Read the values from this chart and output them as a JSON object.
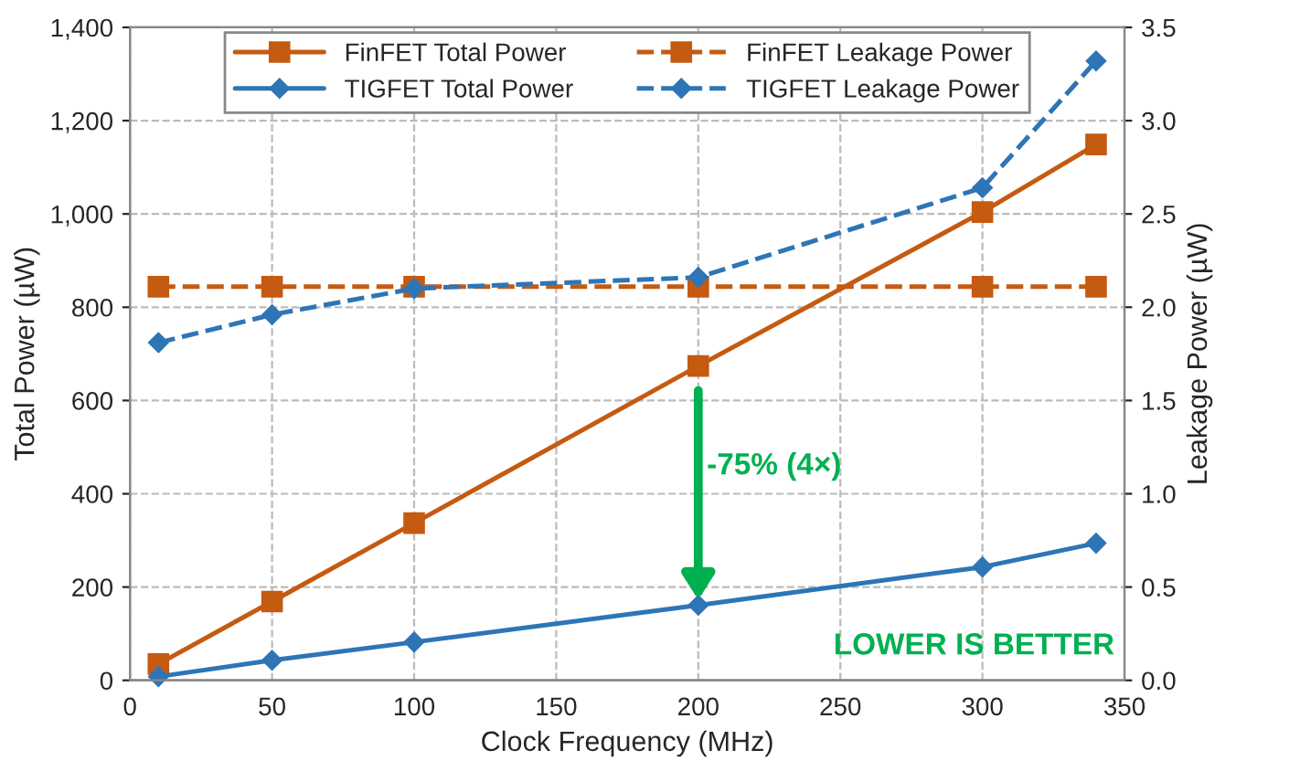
{
  "chart_data": {
    "type": "line",
    "xlabel": "Clock Frequency (MHz)",
    "ylabel": "Total Power (µW)",
    "y2label": "Leakage Power (µW)",
    "xlim": [
      0,
      350
    ],
    "xticks": [
      0,
      50,
      100,
      150,
      200,
      250,
      300,
      350
    ],
    "ylim": [
      0,
      1400
    ],
    "yticks": [
      0,
      200,
      400,
      600,
      800,
      {
        "value": 1000,
        "label": "1,000"
      },
      {
        "value": 1200,
        "label": "1,200"
      },
      {
        "value": 1400,
        "label": "1,400"
      }
    ],
    "y2lim": [
      0,
      3.5
    ],
    "y2ticks": [
      {
        "value": 0,
        "label": "0.0"
      },
      0.5,
      {
        "value": 1,
        "label": "1.0"
      },
      1.5,
      {
        "value": 2,
        "label": "2.0"
      },
      2.5,
      {
        "value": 3,
        "label": "3.0"
      },
      3.5
    ],
    "grid": true,
    "legend": "top",
    "series": [
      {
        "name": "FinFET Total Power",
        "color": "#c55a11",
        "marker": "square",
        "line_style": "solid",
        "x": [
          10,
          50,
          100,
          200,
          300,
          340
        ],
        "values": [
          35,
          169,
          337,
          674,
          1004,
          1149
        ]
      },
      {
        "name": "FinFET Leakage Power",
        "color": "#c55a11",
        "marker": "square",
        "line_style": "dashed",
        "axis": "y2",
        "x": [
          10,
          50,
          100,
          200,
          300,
          340
        ],
        "values": [
          2.11,
          2.11,
          2.11,
          2.11,
          2.11,
          2.11
        ]
      },
      {
        "name": "TIGFET Total Power",
        "color": "#2e75b6",
        "marker": "diamond",
        "line_style": "solid",
        "x": [
          10,
          50,
          100,
          200,
          300,
          340
        ],
        "values": [
          8,
          43,
          82,
          161,
          243,
          294
        ]
      },
      {
        "name": "TIGFET Leakage Power",
        "color": "#2e75b6",
        "marker": "diamond",
        "line_style": "dashed",
        "axis": "y2",
        "x": [
          10,
          50,
          100,
          200,
          300,
          340
        ],
        "values": [
          1.81,
          1.96,
          2.1,
          2.16,
          2.64,
          3.32
        ]
      }
    ],
    "annotations": [
      "-75% (4×)",
      "LOWER IS BETTER"
    ]
  }
}
